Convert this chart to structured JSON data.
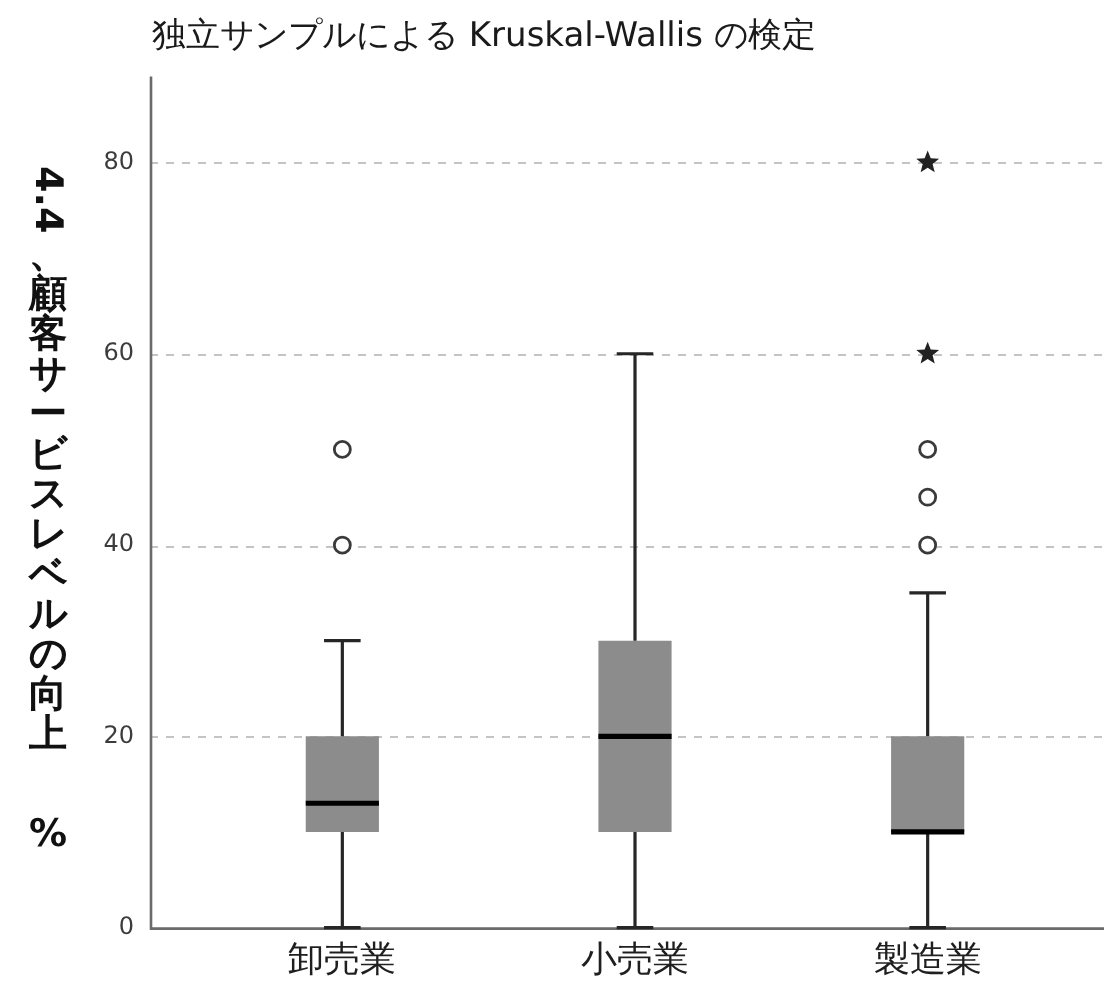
{
  "chart_data": {
    "type": "box",
    "title": "独立サンプルによる Kruskal-Wallis の検定",
    "ylabel": "4.4、顧客サービスレベルの向上 %",
    "categories": [
      "卸売業",
      "小売業",
      "製造業"
    ],
    "series": [
      {
        "color": "#8c8c8c",
        "boxes": [
          {
            "low": 0,
            "q1": 10,
            "median": 13,
            "q3": 20,
            "high": 30,
            "outliers": [
              40,
              50
            ]
          },
          {
            "low": 0,
            "q1": 10,
            "median": 20,
            "q3": 30,
            "high": 60
          },
          {
            "low": 0,
            "q1": 10,
            "median": 10,
            "q3": 20,
            "high": 35,
            "outliers": [
              40,
              45,
              50
            ]
          }
        ]
      },
      {
        "type": "scatter",
        "x": [
          "製造業",
          "製造業"
        ],
        "values": [
          60,
          80
        ],
        "marker": "star",
        "color": "#222222"
      }
    ],
    "ylim": [
      0,
      89
    ],
    "yticks": [
      0,
      20,
      40,
      60,
      80
    ],
    "grid": "y",
    "legend": false
  }
}
